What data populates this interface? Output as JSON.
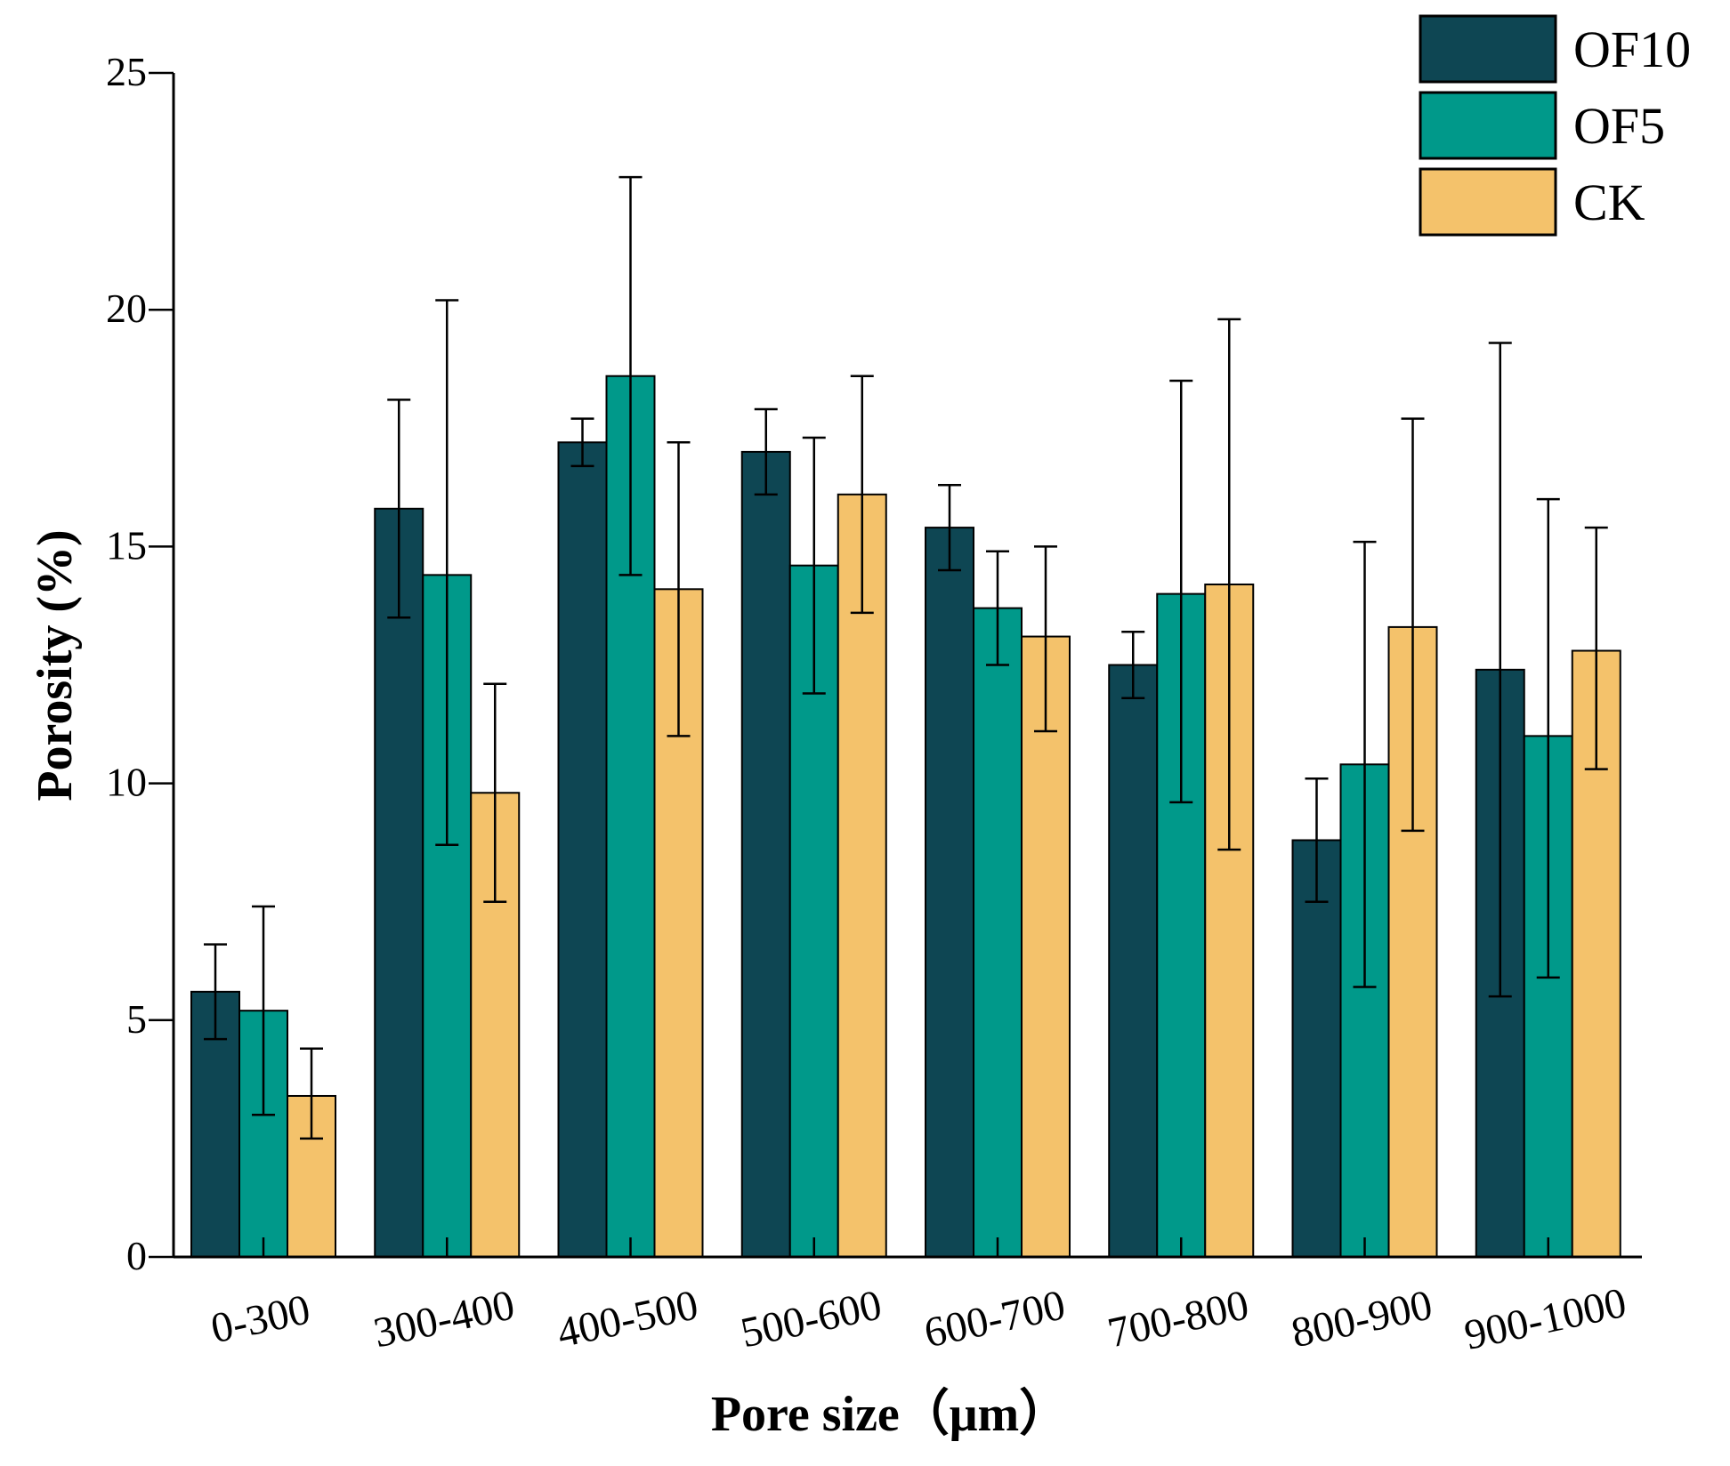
{
  "chart_data": {
    "type": "bar",
    "categories": [
      "0-300",
      "300-400",
      "400-500",
      "500-600",
      "600-700",
      "700-800",
      "800-900",
      "900-1000"
    ],
    "series": [
      {
        "name": "OF10",
        "color": "#0e4653",
        "values": [
          5.6,
          15.8,
          17.2,
          17.0,
          15.4,
          12.5,
          8.8,
          12.4
        ],
        "error_low": [
          4.6,
          13.5,
          16.7,
          16.1,
          14.5,
          11.8,
          7.5,
          5.5
        ],
        "error_high": [
          6.6,
          18.1,
          17.7,
          17.9,
          16.3,
          13.2,
          10.1,
          19.3
        ]
      },
      {
        "name": "OF5",
        "color": "#00998a",
        "values": [
          5.2,
          14.4,
          18.6,
          14.6,
          13.7,
          14.0,
          10.4,
          11.0
        ],
        "error_low": [
          3.0,
          8.7,
          14.4,
          11.9,
          12.5,
          9.6,
          5.7,
          5.9
        ],
        "error_high": [
          7.4,
          20.2,
          22.8,
          17.3,
          14.9,
          18.5,
          15.1,
          16.0
        ]
      },
      {
        "name": "CK",
        "color": "#f4c26b",
        "values": [
          3.4,
          9.8,
          14.1,
          16.1,
          13.1,
          14.2,
          13.3,
          12.8
        ],
        "error_low": [
          2.5,
          7.5,
          11.0,
          13.6,
          11.1,
          8.6,
          9.0,
          10.3
        ],
        "error_high": [
          4.4,
          12.1,
          17.2,
          18.6,
          15.0,
          19.8,
          17.7,
          15.4
        ]
      }
    ],
    "xlabel": "Pore size（μm）",
    "ylabel": "Porosity (%)",
    "ylim": [
      0,
      25
    ],
    "yticks": [
      0,
      5,
      10,
      15,
      20,
      25
    ],
    "grid": false,
    "legend_position": "top-right"
  }
}
